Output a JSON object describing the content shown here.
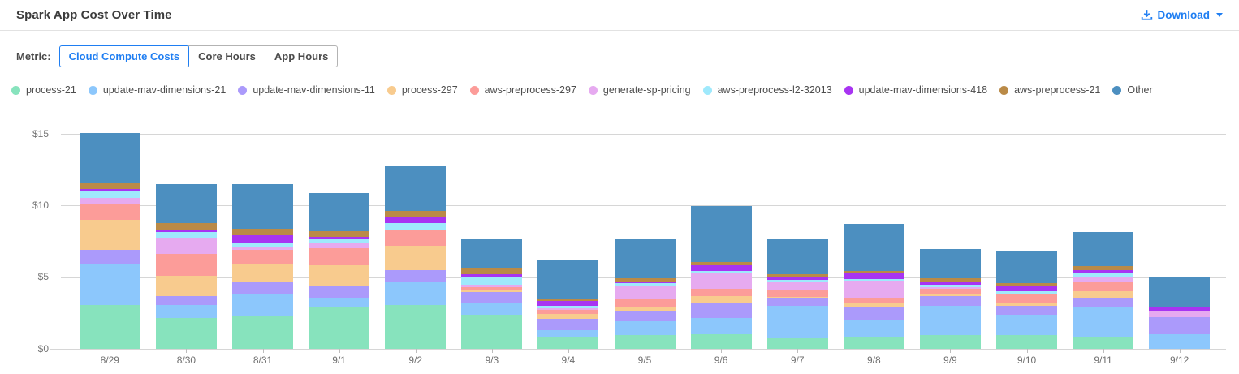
{
  "header": {
    "title": "Spark App Cost Over Time",
    "download_label": "Download"
  },
  "metric": {
    "label": "Metric:",
    "options": [
      {
        "label": "Cloud Compute Costs",
        "selected": true
      },
      {
        "label": "Core Hours",
        "selected": false
      },
      {
        "label": "App Hours",
        "selected": false
      }
    ]
  },
  "colors": {
    "accent_blue": "#1f7ef2",
    "grid_line": "#d6d6d6",
    "axis_text": "#757575"
  },
  "chart_data": {
    "type": "bar",
    "stacked": true,
    "title": "Spark App Cost Over Time",
    "xlabel": "",
    "ylabel": "",
    "ylim": [
      0,
      15
    ],
    "y_ticks": [
      {
        "value": 0,
        "label": "$0"
      },
      {
        "value": 5,
        "label": "$5"
      },
      {
        "value": 10,
        "label": "$10"
      },
      {
        "value": 15,
        "label": "$15"
      }
    ],
    "grid": true,
    "legend_position": "top",
    "categories": [
      "8/29",
      "8/30",
      "8/31",
      "9/1",
      "9/2",
      "9/3",
      "9/4",
      "9/5",
      "9/6",
      "9/7",
      "9/8",
      "9/9",
      "9/10",
      "9/11",
      "9/12"
    ],
    "series": [
      {
        "name": "process-21",
        "color": "#87e3bd",
        "values": [
          3.05,
          2.13,
          2.3,
          2.87,
          3.06,
          2.36,
          0.79,
          0.98,
          1.04,
          0.76,
          0.85,
          0.98,
          0.94,
          0.79,
          0.0
        ]
      },
      {
        "name": "update-mav-dimensions-21",
        "color": "#8cc7fc",
        "values": [
          2.85,
          0.9,
          1.55,
          0.72,
          1.63,
          0.85,
          0.53,
          0.95,
          1.13,
          2.23,
          1.19,
          2.04,
          1.42,
          2.14,
          1.04
        ]
      },
      {
        "name": "update-mav-dimensions-11",
        "color": "#ab9afb",
        "values": [
          1.0,
          0.65,
          0.8,
          0.8,
          0.79,
          0.76,
          0.76,
          0.72,
          1.0,
          0.56,
          0.83,
          0.66,
          0.63,
          0.62,
          1.19
        ]
      },
      {
        "name": "process-297",
        "color": "#f8cb8e",
        "values": [
          2.1,
          1.42,
          1.28,
          1.46,
          1.7,
          0.19,
          0.34,
          0.28,
          0.51,
          0.08,
          0.3,
          0.19,
          0.26,
          0.46,
          0.0
        ]
      },
      {
        "name": "aws-preprocess-297",
        "color": "#fc9c99",
        "values": [
          1.05,
          1.55,
          0.95,
          1.17,
          1.12,
          0.16,
          0.3,
          0.57,
          0.51,
          0.43,
          0.42,
          0.32,
          0.53,
          0.62,
          0.0
        ]
      },
      {
        "name": "generate-sp-pricing",
        "color": "#e6aaf0",
        "values": [
          0.5,
          1.1,
          0.25,
          0.34,
          0.0,
          0.15,
          0.1,
          0.88,
          1.1,
          0.57,
          1.17,
          0.12,
          0.08,
          0.43,
          0.42
        ]
      },
      {
        "name": "aws-preprocess-l2-32013",
        "color": "#9fe9fc",
        "values": [
          0.45,
          0.4,
          0.27,
          0.34,
          0.47,
          0.57,
          0.19,
          0.19,
          0.15,
          0.19,
          0.11,
          0.19,
          0.15,
          0.23,
          0.0
        ]
      },
      {
        "name": "update-mav-dimensions-418",
        "color": "#a834f2",
        "values": [
          0.15,
          0.2,
          0.52,
          0.13,
          0.38,
          0.18,
          0.32,
          0.15,
          0.38,
          0.19,
          0.38,
          0.22,
          0.38,
          0.19,
          0.22
        ]
      },
      {
        "name": "aws-preprocess-21",
        "color": "#ba8a47",
        "values": [
          0.4,
          0.45,
          0.47,
          0.4,
          0.47,
          0.45,
          0.15,
          0.23,
          0.23,
          0.19,
          0.19,
          0.23,
          0.22,
          0.28,
          0.0
        ]
      },
      {
        "name": "Other",
        "color": "#4c8fc0",
        "values": [
          3.5,
          2.7,
          3.1,
          2.65,
          3.13,
          2.05,
          2.7,
          2.76,
          3.9,
          2.51,
          3.29,
          2.04,
          2.27,
          2.4,
          2.14
        ]
      }
    ]
  }
}
